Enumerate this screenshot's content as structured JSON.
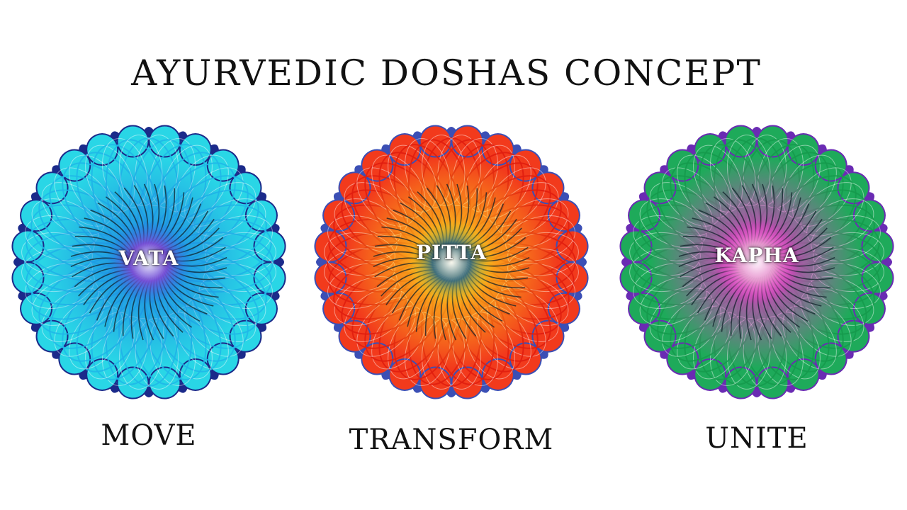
{
  "title": "AYURVEDIC DOSHAS CONCEPT",
  "doshas": [
    {
      "name": "VATA",
      "caption": "MOVE",
      "colors": {
        "outer": "#1b2a8a",
        "petal": "#29d6e6",
        "line": "#1fb8e8",
        "inner": "#1e7fe0",
        "core": "#7a4fd8"
      }
    },
    {
      "name": "PITTA",
      "caption": "TRANSFORM",
      "colors": {
        "outer": "#3b4fb5",
        "petal": "#f23a1c",
        "line": "#e01e10",
        "inner": "#ffe21a",
        "core": "#3d6f80"
      }
    },
    {
      "name": "KAPHA",
      "caption": "UNITE",
      "colors": {
        "outer": "#6a2bb3",
        "petal": "#1eaa5a",
        "line": "#159a4c",
        "inner": "#ff2ad6",
        "core": "#e89ad0"
      }
    }
  ]
}
